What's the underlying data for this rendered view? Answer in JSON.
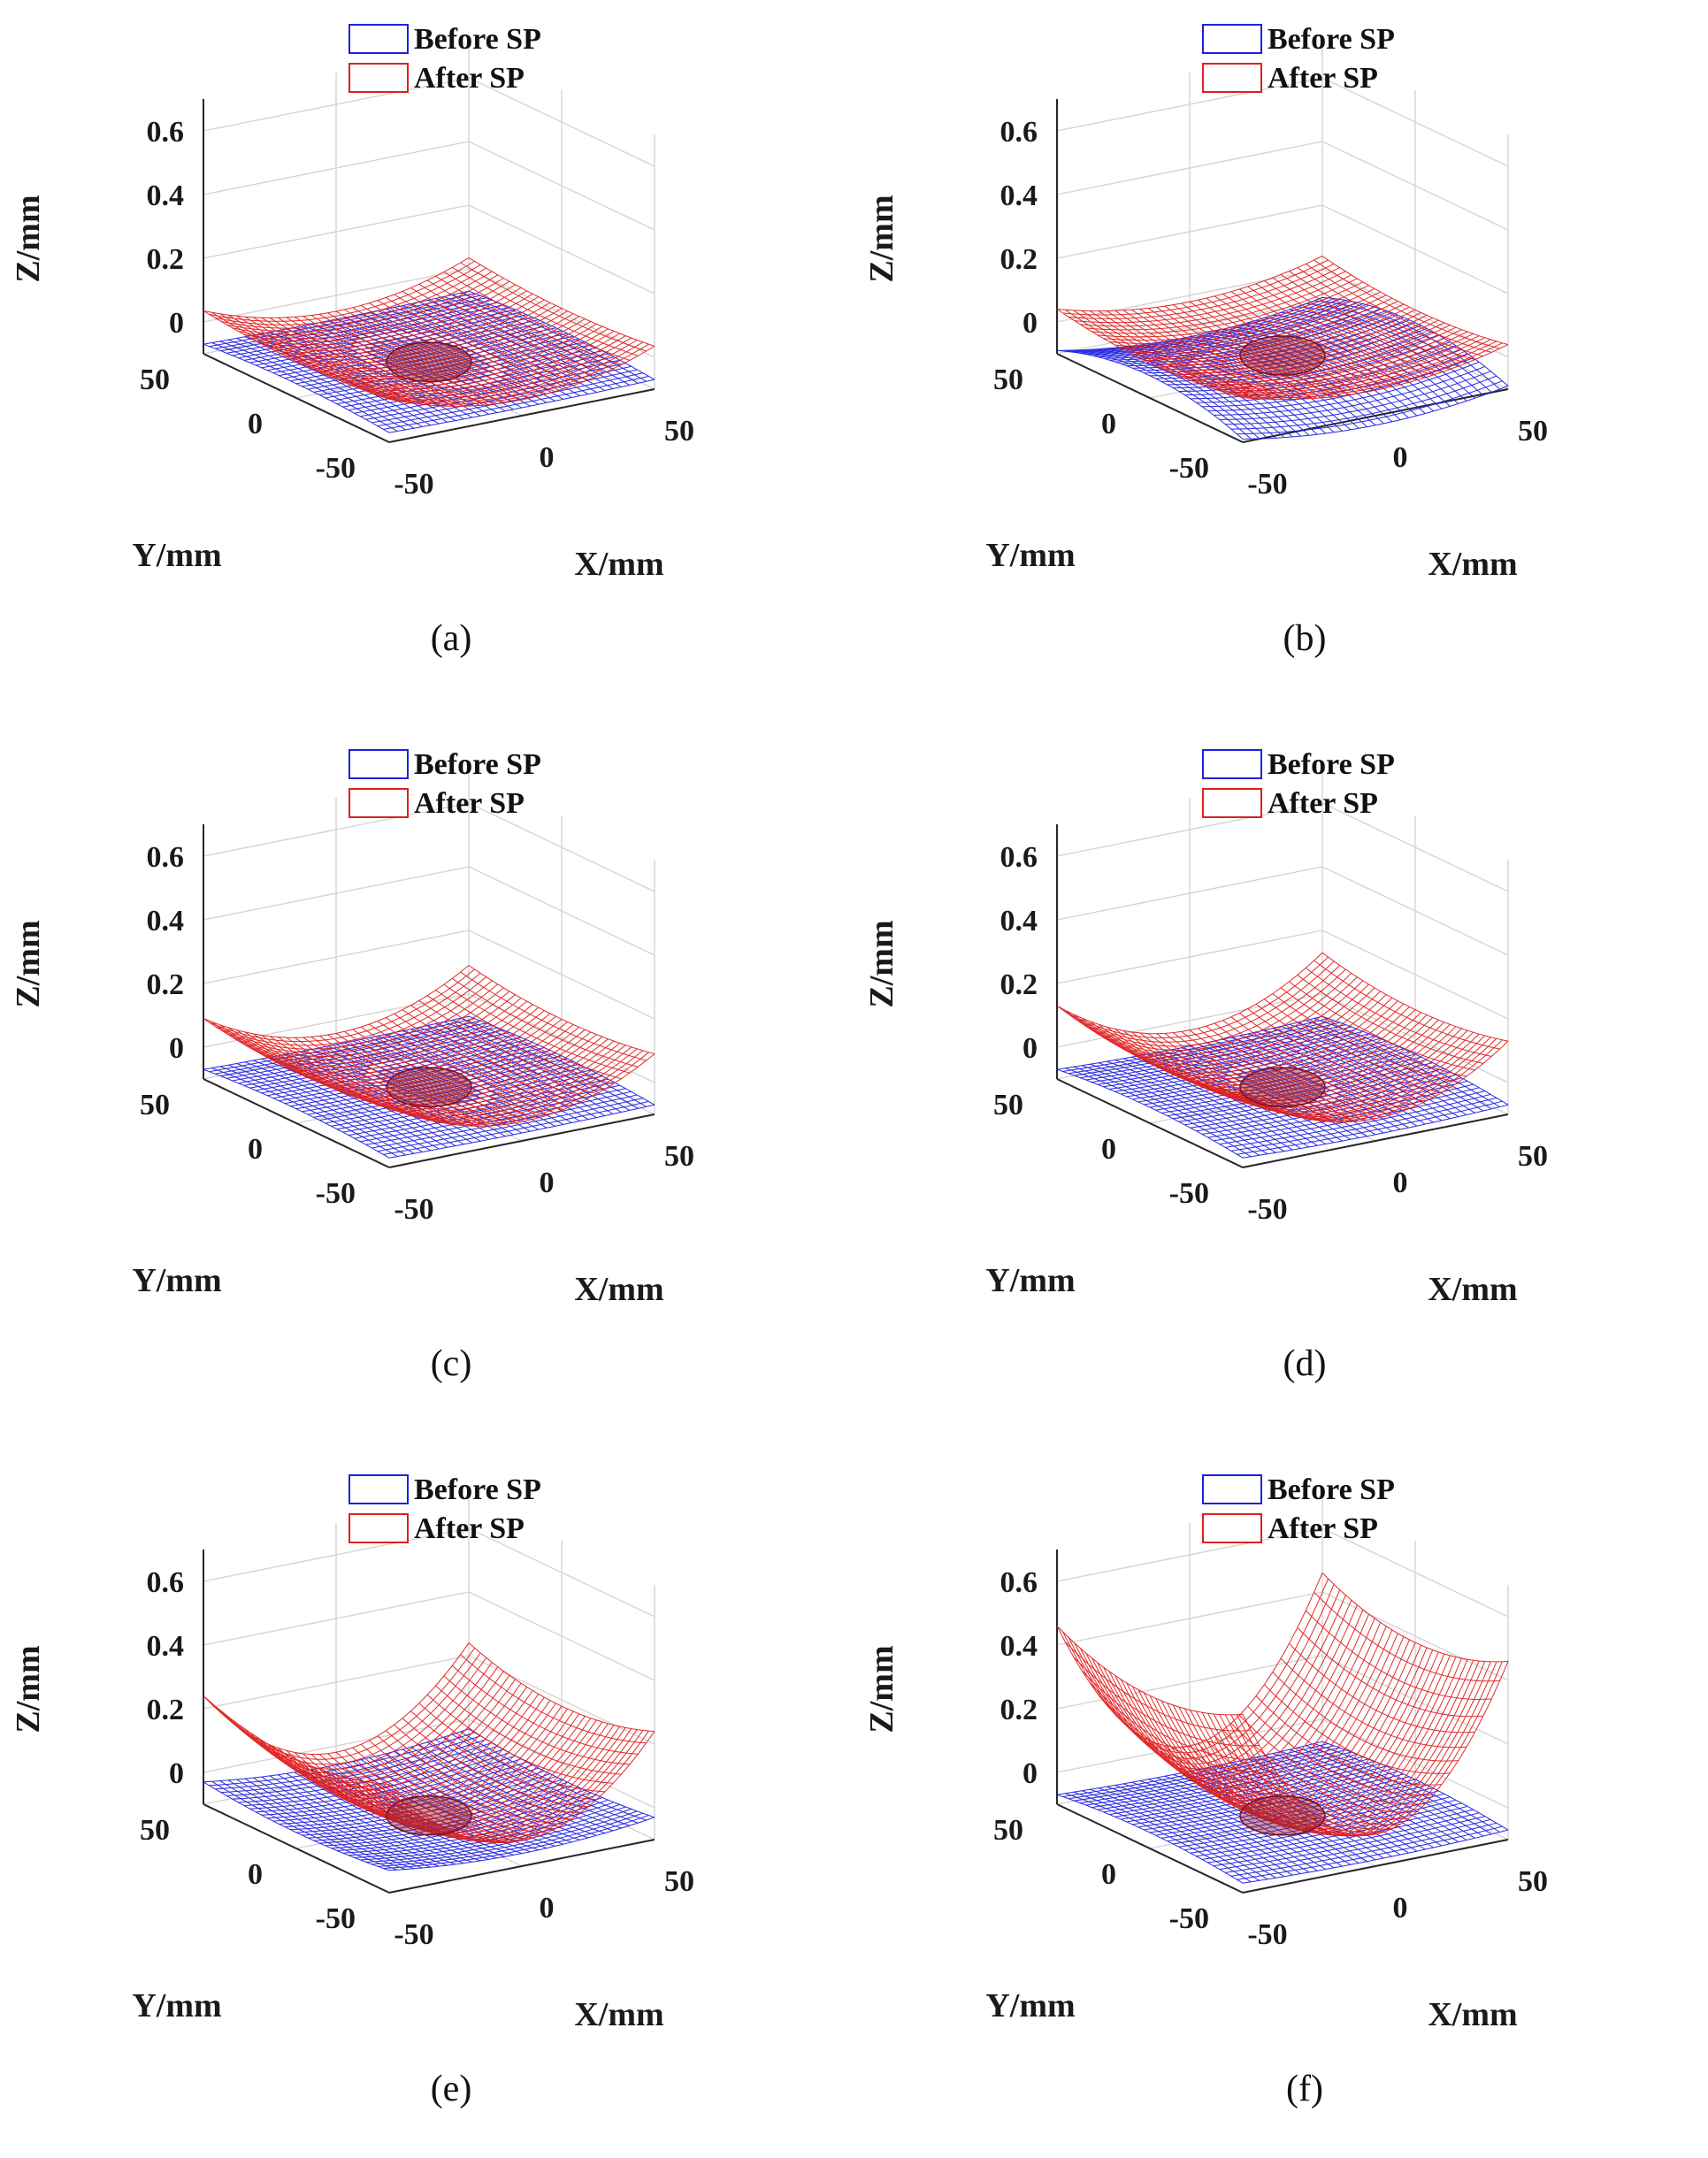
{
  "chart_data": [
    {
      "type": "surface3d",
      "panel_label": "(a)",
      "xlabel": "X/mm",
      "ylabel": "Y/mm",
      "zlabel": "Z/mm",
      "x_ticks": [
        "-50",
        "0",
        "50"
      ],
      "y_ticks": [
        "50",
        "0",
        "-50"
      ],
      "z_ticks": [
        "0",
        "0.2",
        "0.4",
        "0.6"
      ],
      "xlim": [
        -50,
        50
      ],
      "ylim": [
        -50,
        50
      ],
      "zlim": [
        -0.1,
        0.7
      ],
      "legend": [
        "Before SP",
        "After SP"
      ],
      "series": [
        {
          "name": "Before SP",
          "color": "#1f1fe0",
          "z_center": -0.06,
          "curvature_x": 0.005,
          "curvature_y": -0.015
        },
        {
          "name": "After SP",
          "color": "#e01f1f",
          "z_center": -0.07,
          "curvature_x": 0.085,
          "curvature_y": 0.02
        }
      ]
    },
    {
      "type": "surface3d",
      "panel_label": "(b)",
      "xlabel": "X/mm",
      "ylabel": "Y/mm",
      "zlabel": "Z/mm",
      "x_ticks": [
        "-50",
        "0",
        "50"
      ],
      "y_ticks": [
        "50",
        "0",
        "-50"
      ],
      "z_ticks": [
        "0",
        "0.2",
        "0.4",
        "0.6"
      ],
      "xlim": [
        -50,
        50
      ],
      "ylim": [
        -50,
        50
      ],
      "zlim": [
        -0.1,
        0.7
      ],
      "legend": [
        "Before SP",
        "After SP"
      ],
      "series": [
        {
          "name": "Before SP",
          "color": "#1f1fe0",
          "z_center": -0.07,
          "curvature_x": 0.04,
          "curvature_y": -0.06
        },
        {
          "name": "After SP",
          "color": "#e01f1f",
          "z_center": -0.05,
          "curvature_x": 0.06,
          "curvature_y": 0.03
        }
      ]
    },
    {
      "type": "surface3d",
      "panel_label": "(c)",
      "xlabel": "X/mm",
      "ylabel": "Y/mm",
      "zlabel": "Z/mm",
      "x_ticks": [
        "-50",
        "0",
        "50"
      ],
      "y_ticks": [
        "50",
        "0",
        "-50"
      ],
      "z_ticks": [
        "0",
        "0.2",
        "0.4",
        "0.6"
      ],
      "xlim": [
        -50,
        50
      ],
      "ylim": [
        -50,
        50
      ],
      "zlim": [
        -0.1,
        0.7
      ],
      "legend": [
        "Before SP",
        "After SP"
      ],
      "series": [
        {
          "name": "Before SP",
          "color": "#1f1fe0",
          "z_center": -0.06,
          "curvature_x": 0.005,
          "curvature_y": -0.015
        },
        {
          "name": "After SP",
          "color": "#e01f1f",
          "z_center": -0.07,
          "curvature_x": 0.13,
          "curvature_y": 0.03
        }
      ]
    },
    {
      "type": "surface3d",
      "panel_label": "(d)",
      "xlabel": "X/mm",
      "ylabel": "Y/mm",
      "zlabel": "Z/mm",
      "x_ticks": [
        "-50",
        "0",
        "50"
      ],
      "y_ticks": [
        "50",
        "0",
        "-50"
      ],
      "z_ticks": [
        "0",
        "0.2",
        "0.4",
        "0.6"
      ],
      "xlim": [
        -50,
        50
      ],
      "ylim": [
        -50,
        50
      ],
      "zlim": [
        -0.1,
        0.7
      ],
      "legend": [
        "Before SP",
        "After SP"
      ],
      "series": [
        {
          "name": "Before SP",
          "color": "#1f1fe0",
          "z_center": -0.06,
          "curvature_x": 0.01,
          "curvature_y": -0.02
        },
        {
          "name": "After SP",
          "color": "#e01f1f",
          "z_center": -0.07,
          "curvature_x": 0.16,
          "curvature_y": 0.04
        }
      ]
    },
    {
      "type": "surface3d",
      "panel_label": "(e)",
      "xlabel": "X/mm",
      "ylabel": "Y/mm",
      "zlabel": "Z/mm",
      "x_ticks": [
        "-50",
        "0",
        "50"
      ],
      "y_ticks": [
        "50",
        "0",
        "-50"
      ],
      "z_ticks": [
        "0",
        "0.2",
        "0.4",
        "0.6"
      ],
      "xlim": [
        -50,
        50
      ],
      "ylim": [
        -50,
        50
      ],
      "zlim": [
        -0.1,
        0.7
      ],
      "legend": [
        "Before SP",
        "After SP"
      ],
      "series": [
        {
          "name": "Before SP",
          "color": "#1f1fe0",
          "z_center": -0.08,
          "curvature_x": 0.03,
          "curvature_y": 0.02
        },
        {
          "name": "After SP",
          "color": "#e01f1f",
          "z_center": -0.08,
          "curvature_x": 0.26,
          "curvature_y": 0.06
        }
      ]
    },
    {
      "type": "surface3d",
      "panel_label": "(f)",
      "xlabel": "X/mm",
      "ylabel": "Y/mm",
      "zlabel": "Z/mm",
      "x_ticks": [
        "-50",
        "0",
        "50"
      ],
      "y_ticks": [
        "50",
        "0",
        "-50"
      ],
      "z_ticks": [
        "0",
        "0.2",
        "0.4",
        "0.6"
      ],
      "xlim": [
        -50,
        50
      ],
      "ylim": [
        -50,
        50
      ],
      "zlim": [
        -0.1,
        0.7
      ],
      "legend": [
        "Before SP",
        "After SP"
      ],
      "series": [
        {
          "name": "Before SP",
          "color": "#1f1fe0",
          "z_center": -0.06,
          "curvature_x": 0.01,
          "curvature_y": -0.02
        },
        {
          "name": "After SP",
          "color": "#e01f1f",
          "z_center": -0.08,
          "curvature_x": 0.46,
          "curvature_y": 0.08
        }
      ]
    }
  ]
}
